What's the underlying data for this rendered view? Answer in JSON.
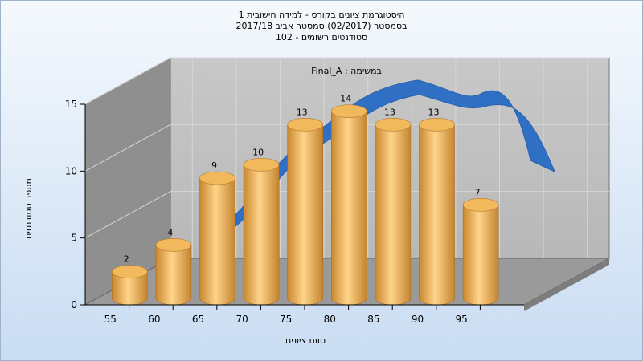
{
  "chart_data": {
    "type": "bar",
    "title_lines": [
      "היסטוגרמת ציונים בקורס - למידה חישובית 1",
      "בסמסטר  (02/2017)  סמסטר אביב 2017/18",
      "סטודנטים רשומים - 102"
    ],
    "xlabel": "טווח ציונים",
    "ylabel": "מספר סטודנטים",
    "categories": [
      "55",
      "60",
      "65",
      "70",
      "75",
      "80",
      "85",
      "90",
      "95"
    ],
    "values": [
      2,
      4,
      9,
      10,
      13,
      14,
      13,
      13,
      7
    ],
    "yticks": [
      0,
      5,
      10,
      15
    ],
    "ylim": [
      0,
      15
    ],
    "annotation": "Final_A : במשימה",
    "curve": "smooth blue distribution ribbon behind bars",
    "grid": true,
    "colors": {
      "bar": "#e2a24c",
      "curve": "#2f6fc4",
      "wall": "#b9b9b9"
    }
  }
}
